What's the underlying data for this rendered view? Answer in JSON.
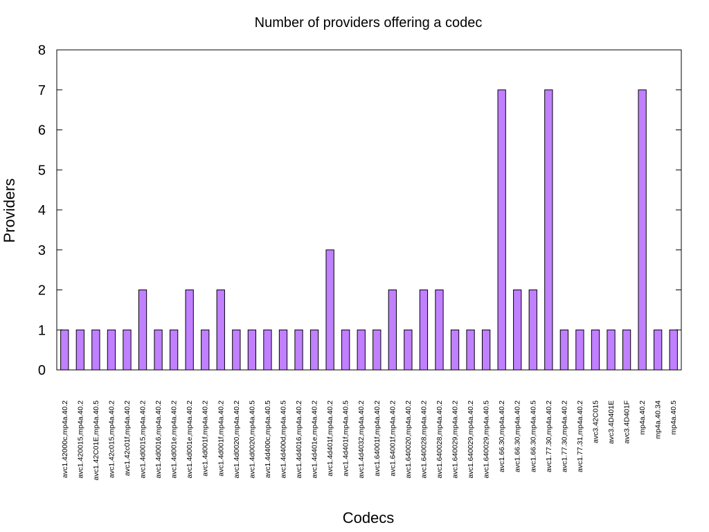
{
  "chart_data": {
    "type": "bar",
    "title": "Number of providers offering a codec",
    "xlabel": "Codecs",
    "ylabel": "Providers",
    "ylim": [
      0,
      8
    ],
    "yticks": [
      0,
      1,
      2,
      3,
      4,
      5,
      6,
      7,
      8
    ],
    "grid": false,
    "legend": "none",
    "bar_color": "#c080ff",
    "bar_edge_color": "#000000",
    "categories": [
      "avc1.42000c,mp4a.40.2",
      "avc1.420015,mp4a.40.2",
      "avc1.42C01E,mp4a.40.5",
      "avc1.42c015,mp4a.40.2",
      "avc1.42c01f,mp4a.40.2",
      "avc1.4d0015,mp4a.40.2",
      "avc1.4d0016,mp4a.40.2",
      "avc1.4d001e,mp4a.40.2",
      "avc1.4d001e,mp4a.40.2",
      "avc1.4d001f,mp4a.40.2",
      "avc1.4d001f,mp4a.40.2",
      "avc1.4d0020,mp4a.40.2",
      "avc1.4d0020,mp4a.40.5",
      "avc1.4d400c,mp4a.40.5",
      "avc1.4d400d,mp4a.40.5",
      "avc1.4d4016,mp4a.40.2",
      "avc1.4d401e,mp4a.40.2",
      "avc1.4d401f,mp4a.40.2",
      "avc1.4d401f,mp4a.40.5",
      "avc1.4d4032,mp4a.40.2",
      "avc1.64001f,mp4a.40.2",
      "avc1.64001f,mp4a.40.2",
      "avc1.640020,mp4a.40.2",
      "avc1.640028,mp4a.40.2",
      "avc1.640028,mp4a.40.2",
      "avc1.640029,mp4a.40.2",
      "avc1.640029,mp4a.40.2",
      "avc1.640029,mp4a.40.5",
      "avc1.66.30,mp4a.40.2",
      "avc1.66.30,mp4a.40.2",
      "avc1.66.30,mp4a.40.5",
      "avc1.77.30,mp4a.40.2",
      "avc1.77.30,mp4a.40.2",
      "avc1.77.31,mp4a.40.2",
      "avc3.42C015",
      "avc3.4D401E",
      "avc3.4D401F",
      "mp4a.40.2",
      "mp4a.40.34",
      "mp4a.40.5"
    ],
    "values": [
      1,
      1,
      1,
      1,
      1,
      2,
      1,
      1,
      2,
      1,
      2,
      1,
      1,
      1,
      1,
      1,
      1,
      3,
      1,
      1,
      1,
      2,
      1,
      2,
      2,
      1,
      1,
      1,
      7,
      2,
      2,
      7,
      1,
      1,
      1,
      1,
      1,
      7,
      1,
      1
    ]
  }
}
